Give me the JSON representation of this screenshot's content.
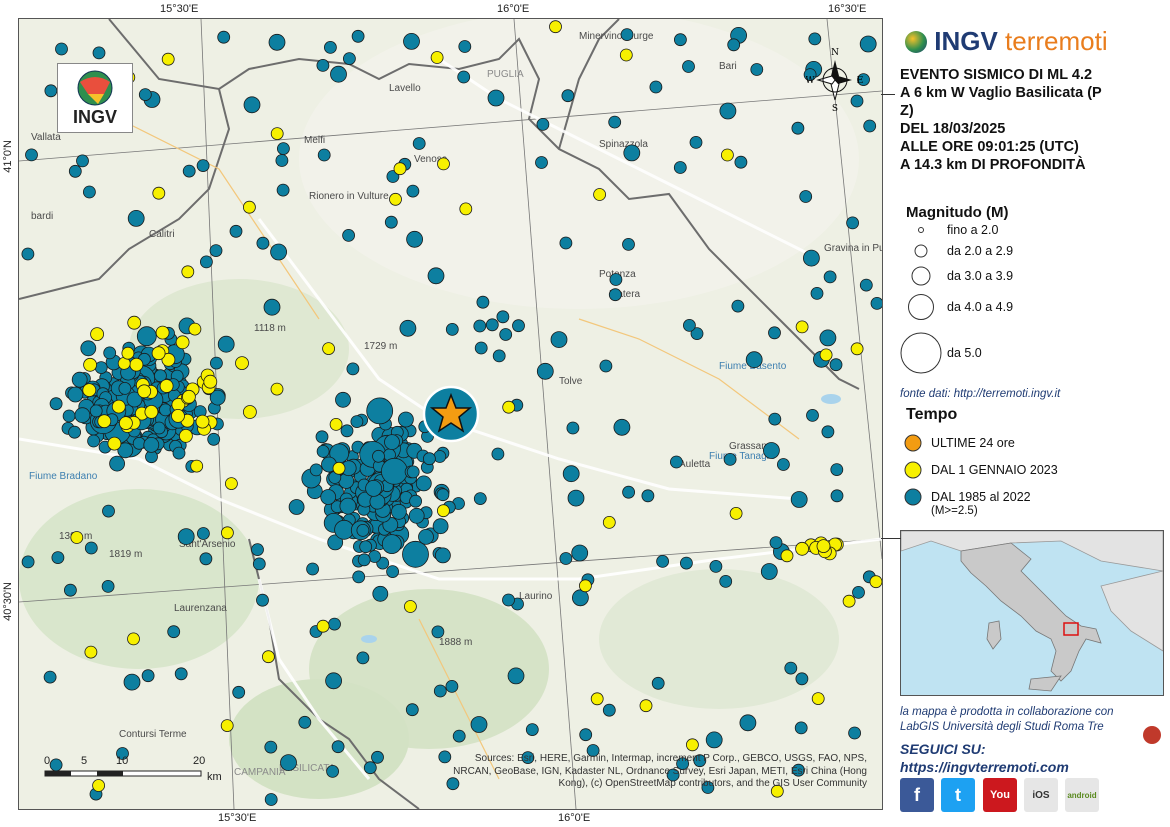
{
  "map": {
    "coords": {
      "top": [
        "15°30'E",
        "16°0'E",
        "16°30'E"
      ],
      "bottom": [
        "15°30'E",
        "16°0'E"
      ],
      "left": [
        "41°0'N",
        "40°30'N"
      ]
    },
    "places": [
      "Minervino Murge",
      "Lavello",
      "Melfi",
      "Venosa",
      "Spinazzola",
      "Rionero in Vulture",
      "Calitri",
      "Vallata",
      "bardi",
      "Potenza",
      "Matera",
      "Gravina in Puglia",
      "Tolve",
      "Grassano",
      "Auletta",
      "Sant'Arsenio",
      "Laurenzana",
      "Laurino",
      "Contursi Terme",
      "Fiume Bradano",
      "Fiume Basento",
      "Fiume Tanagro",
      "1396 m",
      "1118 m",
      "1729 m",
      "1819 m",
      "1888 m",
      "CAMPANIA",
      "BASILICATA",
      "PUGLIA",
      "Bari"
    ],
    "logo_text": "INGV",
    "compass": {
      "n": "N",
      "s": "S",
      "e": "E",
      "w": "W"
    },
    "scale_labels": [
      "0",
      "5",
      "10",
      "20"
    ],
    "scale_unit": "km",
    "sources": "Sources: Esri, HERE, Garmin, Intermap, increment P Corp., GEBCO, USGS, FAO, NPS, NRCAN, GeoBase, IGN, Kadaster NL, Ordnance Survey, Esri Japan, METI, Esri China (Hong Kong), (c) OpenStreetMap contributors, and the GIS User Community",
    "colors": {
      "historic": "#0d7fa0",
      "recent": "#f7f000",
      "last24": "#f39c12",
      "roads": "#ffffff",
      "border": "#555555"
    }
  },
  "header": {
    "brand_a": "INGV",
    "brand_b": "terremoti"
  },
  "event": {
    "line1": "EVENTO SISMICO DI ML 4.2",
    "line2": "A 6 km W Vaglio Basilicata (P",
    "line3": "Z)",
    "line4": "DEL 18/03/2025",
    "line5": "ALLE ORE 09:01:25 (UTC)",
    "line6": "A 14.3 km DI PROFONDITÀ"
  },
  "magnitude_legend": {
    "title": "Magnitudo (M)",
    "items": [
      "fino a 2.0",
      "da 2.0 a 2.9",
      "da 3.0 a 3.9",
      "da 4.0 a 4.9",
      "da 5.0"
    ]
  },
  "data_source": "fonte dati: http://terremoti.ingv.it",
  "time_legend": {
    "title": "Tempo",
    "items": [
      "ULTIME 24 ore",
      "DAL 1 GENNAIO 2023",
      "DAL 1985 al 2022",
      "(M>=2.5)"
    ]
  },
  "credit": {
    "line1": "la mappa è prodotta in collaborazione con",
    "line2": "LabGIS Università degli Studi Roma Tre"
  },
  "follow": {
    "title": "SEGUICI SU:",
    "url": "https://ingvterremoti.com"
  },
  "social": {
    "facebook": "f",
    "twitter": "t",
    "youtube": "You",
    "ios": "iOS",
    "android": "android"
  }
}
